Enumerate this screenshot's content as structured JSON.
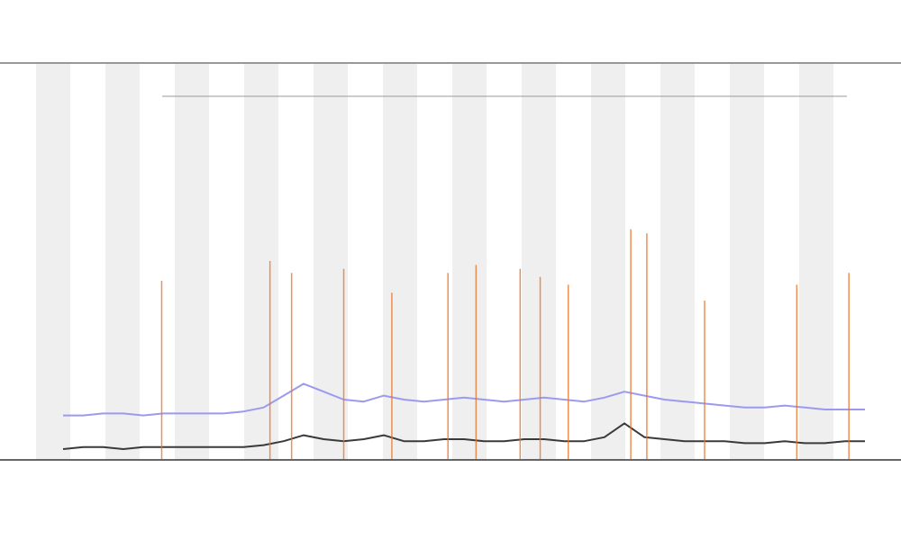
{
  "chart_data": {
    "type": "line",
    "xlim": [
      0,
      100
    ],
    "ylim": [
      0,
      100
    ],
    "grid": false,
    "series": [
      {
        "color": "#9a9af0",
        "x": [
          0,
          2.5,
          5,
          7.5,
          10,
          12.5,
          15,
          17.5,
          20,
          22.5,
          25,
          27.5,
          30,
          32.5,
          35,
          37.5,
          40,
          42.5,
          45,
          47.5,
          50,
          52.5,
          55,
          57.5,
          60,
          62.5,
          65,
          67.5,
          70,
          72.5,
          75,
          77.5,
          80,
          82.5,
          85,
          87.5,
          90,
          92.5,
          95,
          97.5,
          100
        ],
        "values": [
          11,
          11,
          11.5,
          11.5,
          11,
          11.5,
          11.5,
          11.5,
          11.5,
          12,
          13,
          16,
          19,
          17,
          15,
          14.5,
          16,
          15,
          14.5,
          15,
          15.5,
          15,
          14.5,
          15,
          15.5,
          15,
          14.5,
          15.5,
          17,
          16,
          15,
          14.5,
          14,
          13.5,
          13,
          13,
          13.5,
          13,
          12.5,
          12.5,
          12.5
        ]
      },
      {
        "color": "#3a3a3a",
        "x": [
          0,
          2.5,
          5,
          7.5,
          10,
          12.5,
          15,
          17.5,
          20,
          22.5,
          25,
          27.5,
          30,
          32.5,
          35,
          37.5,
          40,
          42.5,
          45,
          47.5,
          50,
          52.5,
          55,
          57.5,
          60,
          62.5,
          65,
          67.5,
          70,
          72.5,
          75,
          77.5,
          80,
          82.5,
          85,
          87.5,
          90,
          92.5,
          95,
          97.5,
          100
        ],
        "values": [
          2.5,
          3,
          3,
          2.5,
          3,
          3,
          3,
          3,
          3,
          3,
          3.5,
          4.5,
          6,
          5,
          4.5,
          5,
          6,
          4.5,
          4.5,
          5,
          5,
          4.5,
          4.5,
          5,
          5,
          4.5,
          4.5,
          5.5,
          9,
          5.5,
          5,
          4.5,
          4.5,
          4.5,
          4,
          4,
          4.5,
          4,
          4,
          4.5,
          4.5
        ]
      },
      {
        "color": "#e8742a",
        "stems": true,
        "x": [
          12.3,
          25.8,
          28.5,
          35,
          41,
          48,
          51.5,
          57,
          59.5,
          63,
          70.8,
          72.8,
          80,
          91.5,
          98
        ],
        "values": [
          45,
          50,
          47,
          48,
          42,
          47,
          49,
          48,
          46,
          44,
          58,
          57,
          40,
          44,
          47
        ]
      }
    ]
  }
}
